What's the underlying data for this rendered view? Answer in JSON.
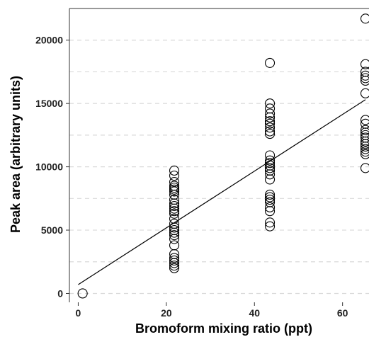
{
  "chart_data": {
    "type": "scatter",
    "title": "",
    "xlabel": "Bromoform mixing ratio (ppt)",
    "ylabel": "Peak area (arbitrary units)",
    "xlim": [
      -2,
      66
    ],
    "ylim": [
      -700,
      22500
    ],
    "x_ticks": [
      0,
      20,
      40,
      60
    ],
    "y_ticks": [
      0,
      5000,
      10000,
      15000,
      20000
    ],
    "x_tick_labels": [
      "0",
      "20",
      "40",
      "60"
    ],
    "y_tick_labels": [
      "0",
      "5000",
      "10000",
      "15000",
      "20000"
    ],
    "grid": "horizontal dashed, major and minor",
    "background": "white panel with left and top border lines",
    "series": [
      {
        "points": [
          [
            1,
            0
          ],
          [
            21.8,
            9700
          ],
          [
            21.8,
            9300
          ],
          [
            21.8,
            8800
          ],
          [
            21.8,
            8500
          ],
          [
            21.8,
            8350
          ],
          [
            21.8,
            8200
          ],
          [
            21.8,
            8050
          ],
          [
            21.8,
            7800
          ],
          [
            21.8,
            7400
          ],
          [
            21.8,
            7100
          ],
          [
            21.8,
            6900
          ],
          [
            21.8,
            6700
          ],
          [
            21.8,
            6500
          ],
          [
            21.8,
            6300
          ],
          [
            21.8,
            5900
          ],
          [
            21.8,
            5500
          ],
          [
            21.8,
            5200
          ],
          [
            21.8,
            5000
          ],
          [
            21.8,
            4800
          ],
          [
            21.8,
            4600
          ],
          [
            21.8,
            4300
          ],
          [
            21.8,
            3800
          ],
          [
            21.8,
            3100
          ],
          [
            21.8,
            2800
          ],
          [
            21.8,
            2600
          ],
          [
            21.8,
            2400
          ],
          [
            21.8,
            2200
          ],
          [
            21.8,
            2000
          ],
          [
            43.5,
            18200
          ],
          [
            43.5,
            15000
          ],
          [
            43.5,
            14600
          ],
          [
            43.5,
            14200
          ],
          [
            43.5,
            13900
          ],
          [
            43.5,
            13600
          ],
          [
            43.5,
            13400
          ],
          [
            43.5,
            13100
          ],
          [
            43.5,
            12800
          ],
          [
            43.5,
            12600
          ],
          [
            43.5,
            10900
          ],
          [
            43.5,
            10500
          ],
          [
            43.5,
            10300
          ],
          [
            43.5,
            10100
          ],
          [
            43.5,
            9900
          ],
          [
            43.5,
            9700
          ],
          [
            43.5,
            9400
          ],
          [
            43.5,
            9000
          ],
          [
            43.5,
            7800
          ],
          [
            43.5,
            7600
          ],
          [
            43.5,
            7400
          ],
          [
            43.5,
            7200
          ],
          [
            43.5,
            6800
          ],
          [
            43.5,
            6500
          ],
          [
            43.5,
            5600
          ],
          [
            43.5,
            5300
          ],
          [
            65.2,
            21700
          ],
          [
            65.2,
            18100
          ],
          [
            65.2,
            17500
          ],
          [
            65.2,
            17200
          ],
          [
            65.2,
            17000
          ],
          [
            65.2,
            16800
          ],
          [
            65.2,
            15800
          ],
          [
            65.2,
            13700
          ],
          [
            65.2,
            13400
          ],
          [
            65.2,
            12900
          ],
          [
            65.2,
            12700
          ],
          [
            65.2,
            12500
          ],
          [
            65.2,
            12300
          ],
          [
            65.2,
            12000
          ],
          [
            65.2,
            11800
          ],
          [
            65.2,
            11600
          ],
          [
            65.2,
            11400
          ],
          [
            65.2,
            11200
          ],
          [
            65.2,
            11000
          ],
          [
            65.2,
            9900
          ]
        ]
      }
    ],
    "fit_line": {
      "x": [
        0,
        65.2
      ],
      "y": [
        700,
        15300
      ]
    }
  },
  "style": {
    "marker_stroke": "#000000",
    "marker_fill": "none",
    "line_color": "#000000",
    "grid_color": "#d9d9d9",
    "axis_color": "#333333"
  }
}
